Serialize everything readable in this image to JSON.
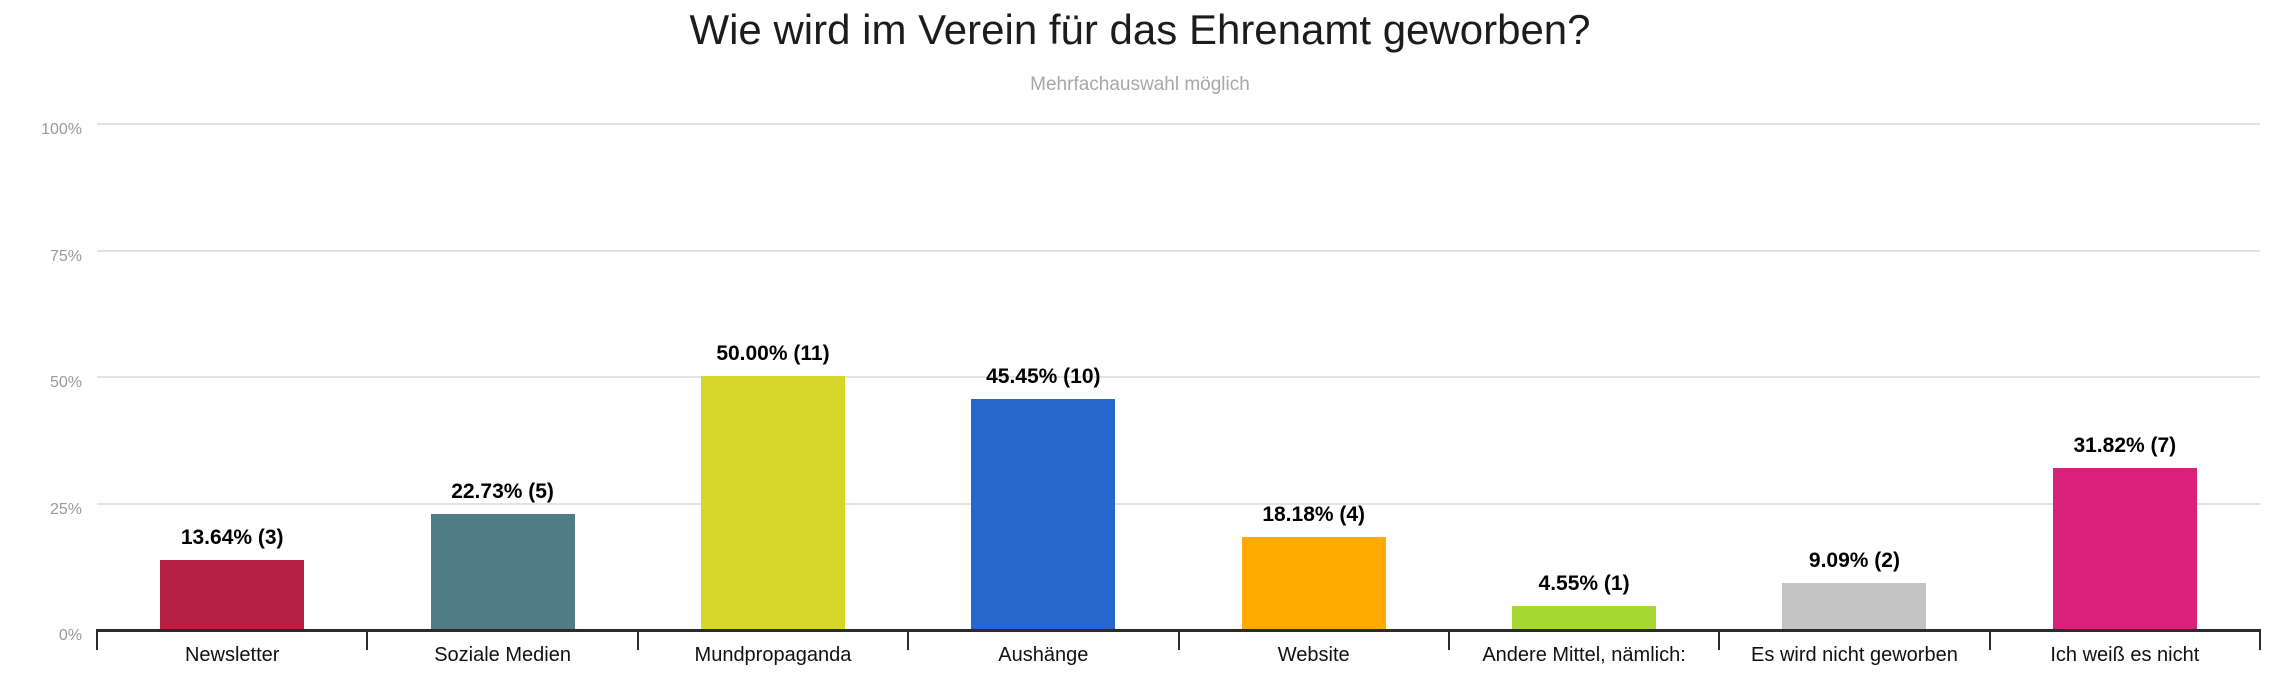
{
  "chart_data": {
    "type": "bar",
    "title": "Wie wird im Verein für das Ehrenamt geworben?",
    "subtitle": "Mehrfachauswahl möglich",
    "categories": [
      "Newsletter",
      "Soziale Medien",
      "Mundpropaganda",
      "Aushänge",
      "Website",
      "Andere Mittel, nämlich:",
      "Es wird nicht geworben",
      "Ich weiß es nicht"
    ],
    "values_pct": [
      13.64,
      22.73,
      50.0,
      45.45,
      18.18,
      4.55,
      9.09,
      31.82
    ],
    "counts": [
      3,
      5,
      11,
      10,
      4,
      1,
      2,
      7
    ],
    "value_labels": [
      "13.64% (3)",
      "22.73% (5)",
      "50.00% (11)",
      "45.45% (10)",
      "18.18% (4)",
      "4.55% (1)",
      "9.09% (2)",
      "31.82% (7)"
    ],
    "bar_colors": [
      "#b62045",
      "#4f7b84",
      "#d6d72a",
      "#2667cd",
      "#ffaa00",
      "#a5d831",
      "#c4c4c4",
      "#d9207a"
    ],
    "y_axis": {
      "tick_labels": [
        "100%",
        "75%",
        "50%",
        "25%",
        "0%"
      ],
      "tick_pcts": [
        100,
        75,
        50,
        25,
        0
      ]
    },
    "ylim": [
      0,
      100
    ],
    "grid": true,
    "legend": "none",
    "xlabel": "",
    "ylabel": ""
  },
  "colors": {
    "axis_line": "#2b2b2b",
    "gridline": "#e3e3e3",
    "y_label_text": "#999999",
    "title_text": "#1c1c1c",
    "subtitle_text": "#a7a7a7"
  }
}
